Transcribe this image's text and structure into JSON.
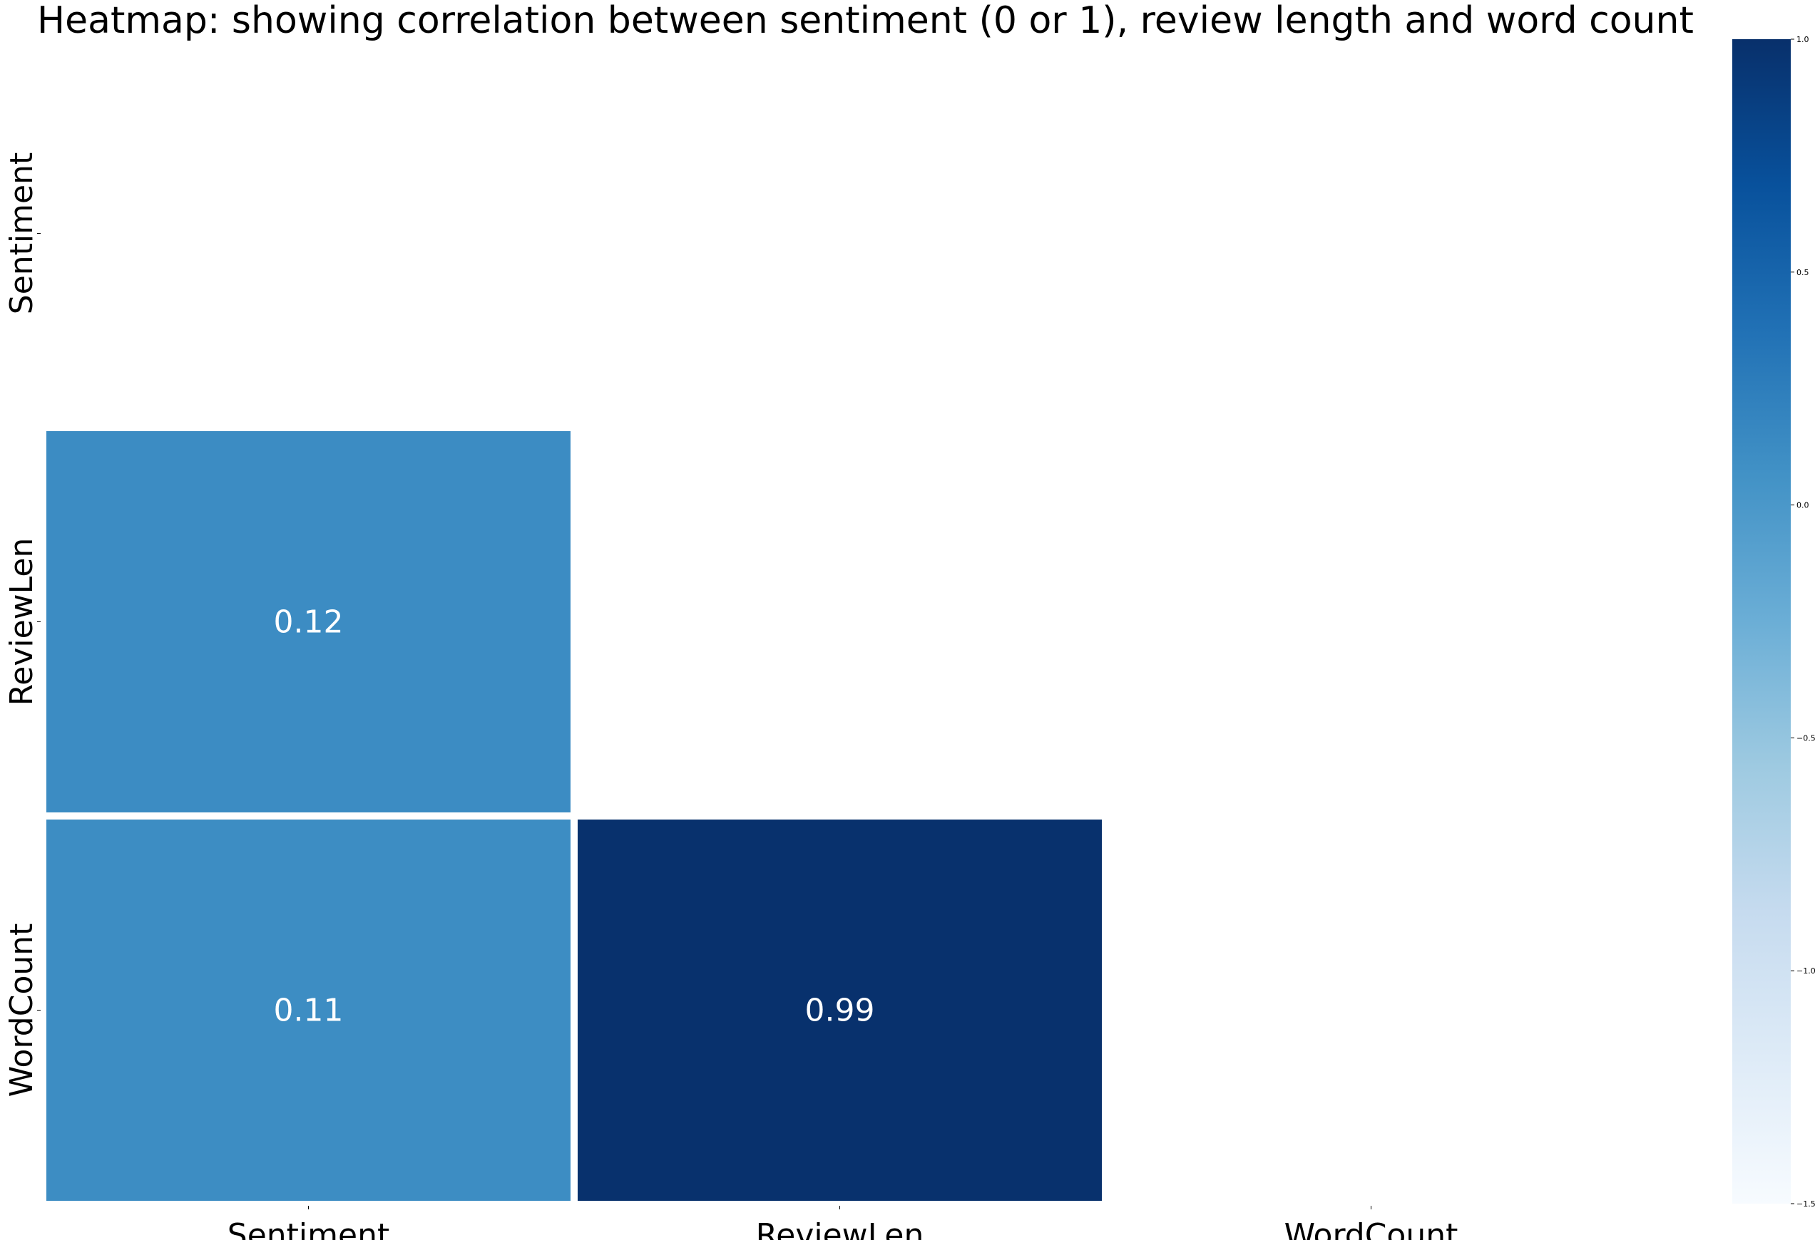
{
  "chart_data": {
    "type": "heatmap",
    "title": "Heatmap: showing correlation between sentiment (0 or 1), review length and word count",
    "x_categories": [
      "Sentiment",
      "ReviewLen",
      "WordCount"
    ],
    "y_categories": [
      "Sentiment",
      "ReviewLen",
      "WordCount"
    ],
    "cells": [
      {
        "row": 1,
        "col": 0,
        "value": 0.12,
        "label": "0.12"
      },
      {
        "row": 2,
        "col": 0,
        "value": 0.11,
        "label": "0.11"
      },
      {
        "row": 2,
        "col": 1,
        "value": 0.99,
        "label": "0.99"
      }
    ],
    "mask": "upper triangle including diagonal",
    "colormap": "Blues",
    "colorbar": {
      "vmin": -1.5,
      "vmax": 1.0,
      "ticks": [
        1.0,
        0.5,
        0.0,
        -0.5,
        -1.0,
        -1.5
      ],
      "tick_labels": [
        "1.0",
        "0.5",
        "0.0",
        "−0.5",
        "−1.0",
        "−1.5"
      ]
    },
    "colors": {
      "blues_stops": [
        "#f7fbff",
        "#deebf7",
        "#c6dbef",
        "#9ecae1",
        "#6baed6",
        "#4292c6",
        "#2171b5",
        "#08519c",
        "#08306b"
      ],
      "annotation_text": "#ffffff",
      "cell_border": "#ffffff"
    }
  }
}
